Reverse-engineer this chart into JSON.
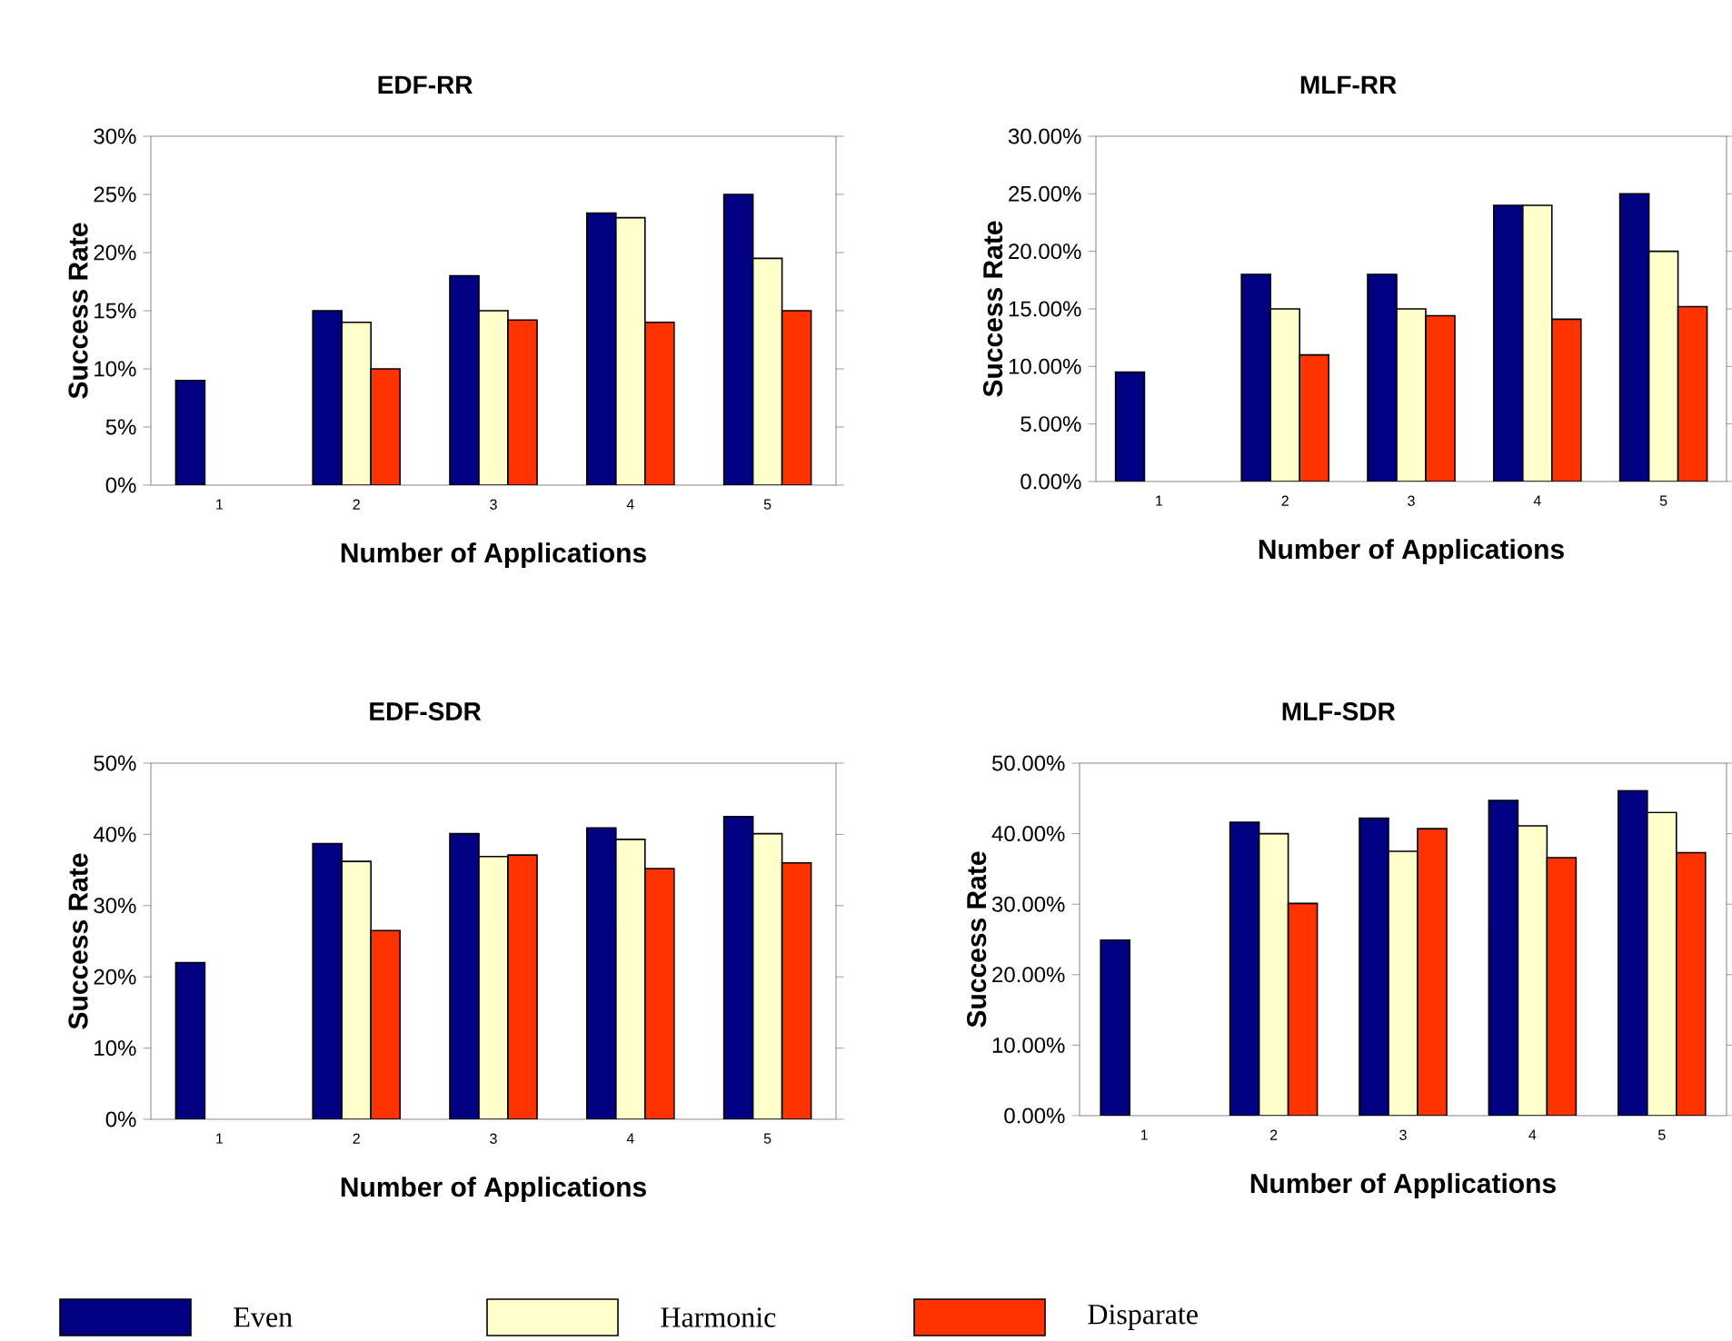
{
  "chart_data": [
    {
      "type": "bar",
      "title": "EDF-RR",
      "xlabel": "Number of Applications",
      "ylabel": "Success Rate",
      "categories": [
        "1",
        "2",
        "3",
        "4",
        "5"
      ],
      "legend": "bottom",
      "series": [
        {
          "name": "Even",
          "color": "#000080",
          "values": [
            9,
            15,
            18,
            23.4,
            25
          ]
        },
        {
          "name": "Harmonic",
          "color": "#ffffcc",
          "values": [
            null,
            14,
            15,
            23,
            19.5
          ]
        },
        {
          "name": "Disparate",
          "color": "#ff3300",
          "values": [
            null,
            10,
            14.2,
            14,
            15
          ]
        }
      ],
      "ylim": [
        0,
        30
      ],
      "yticks": [
        {
          "value": 0,
          "label": "0%"
        },
        {
          "value": 5,
          "label": "5%"
        },
        {
          "value": 10,
          "label": "10%"
        },
        {
          "value": 15,
          "label": "15%"
        },
        {
          "value": 20,
          "label": "20%"
        },
        {
          "value": 25,
          "label": "25%"
        },
        {
          "value": 30,
          "label": "30%"
        }
      ]
    },
    {
      "type": "bar",
      "title": "MLF-RR",
      "xlabel": "Number of Applications",
      "ylabel": "Success Rate",
      "categories": [
        "1",
        "2",
        "3",
        "4",
        "5"
      ],
      "series": [
        {
          "color": "#000080",
          "values": [
            9.5,
            18,
            18,
            24,
            25
          ]
        },
        {
          "color": "#ffffcc",
          "values": [
            null,
            15,
            15,
            24,
            20
          ]
        },
        {
          "color": "#ff3300",
          "values": [
            null,
            11,
            14.4,
            14.1,
            15.2
          ]
        }
      ],
      "ylim": [
        0,
        30
      ],
      "yticks": [
        {
          "value": 0,
          "label": "0.00%"
        },
        {
          "value": 5,
          "label": "5.00%"
        },
        {
          "value": 10,
          "label": "10.00%"
        },
        {
          "value": 15,
          "label": "15.00%"
        },
        {
          "value": 20,
          "label": "20.00%"
        },
        {
          "value": 25,
          "label": "25.00%"
        },
        {
          "value": 30,
          "label": "30.00%"
        }
      ]
    },
    {
      "type": "bar",
      "title": "EDF-SDR",
      "xlabel": "Number of Applications",
      "ylabel": "Success Rate",
      "categories": [
        "1",
        "2",
        "3",
        "4",
        "5"
      ],
      "series": [
        {
          "color": "#000080",
          "values": [
            22,
            38.7,
            40.1,
            40.9,
            42.5
          ]
        },
        {
          "color": "#ffffcc",
          "values": [
            null,
            36.2,
            36.9,
            39.3,
            40.1
          ]
        },
        {
          "color": "#ff3300",
          "values": [
            null,
            26.5,
            37.1,
            35.2,
            36
          ]
        }
      ],
      "ylim": [
        0,
        50
      ],
      "yticks": [
        {
          "value": 0,
          "label": "0%"
        },
        {
          "value": 10,
          "label": "10%"
        },
        {
          "value": 20,
          "label": "20%"
        },
        {
          "value": 30,
          "label": "30%"
        },
        {
          "value": 40,
          "label": "40%"
        },
        {
          "value": 50,
          "label": "50%"
        }
      ]
    },
    {
      "type": "bar",
      "title": "MLF-SDR",
      "xlabel": "Number of Applications",
      "ylabel": "Success Rate",
      "categories": [
        "1",
        "2",
        "3",
        "4",
        "5"
      ],
      "series": [
        {
          "color": "#000080",
          "values": [
            24.9,
            41.6,
            42.2,
            44.7,
            46.1
          ]
        },
        {
          "color": "#ffffcc",
          "values": [
            null,
            40,
            37.5,
            41.1,
            43
          ]
        },
        {
          "color": "#ff3300",
          "values": [
            null,
            30.1,
            40.7,
            36.6,
            37.3
          ]
        }
      ],
      "ylim": [
        0,
        50
      ],
      "yticks": [
        {
          "value": 0,
          "label": "0.00%"
        },
        {
          "value": 10,
          "label": "10.00%"
        },
        {
          "value": 20,
          "label": "20.00%"
        },
        {
          "value": 30,
          "label": "30.00%"
        },
        {
          "value": 40,
          "label": "40.00%"
        },
        {
          "value": 50,
          "label": "50.00%"
        }
      ]
    }
  ]
}
